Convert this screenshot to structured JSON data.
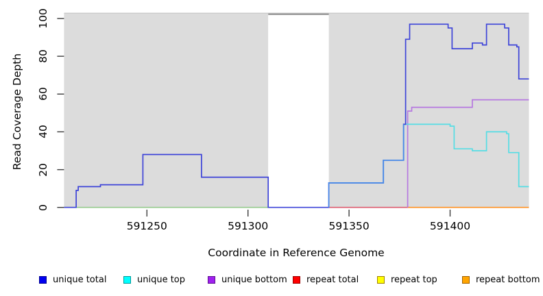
{
  "chart_data": {
    "type": "step-line",
    "title": "",
    "xlabel": "Coordinate in Reference Genome",
    "ylabel": "Read Coverage Depth",
    "xlim": [
      591209,
      591439
    ],
    "ylim": [
      0,
      100
    ],
    "x_ticks": [
      591250,
      591300,
      591350,
      591400
    ],
    "y_ticks": [
      0,
      20,
      40,
      60,
      80,
      100
    ],
    "grid": false,
    "background_color": "#ffffff",
    "shaded_color": "#dcdcdc",
    "shaded_regions": [
      [
        591209,
        591310
      ],
      [
        591340,
        591439
      ]
    ],
    "uncovered_gap": {
      "range": [
        591310,
        591340
      ],
      "border_color": "#8a8a8a"
    },
    "top_edge_line": {
      "color": "#c9c9c9"
    },
    "series": [
      {
        "name": "repeat top",
        "color": "#94ca8c",
        "render_note": "appears yellow-green where overlapping series sit at zero",
        "points": [
          [
            591209,
            0
          ],
          [
            591310,
            0
          ]
        ]
      },
      {
        "name": "repeat total",
        "color": "#dc5a6e",
        "points": [
          [
            591340,
            0
          ],
          [
            591380,
            0
          ]
        ]
      },
      {
        "name": "repeat bottom",
        "color": "#ff9020",
        "points": [
          [
            591379,
            0
          ],
          [
            591439,
            0
          ]
        ]
      },
      {
        "name": "unique bottom",
        "color": "#b678e0",
        "points": [
          [
            591379,
            0
          ],
          [
            591379,
            51
          ],
          [
            591381,
            51
          ],
          [
            591381,
            53
          ],
          [
            591411,
            53
          ],
          [
            591411,
            57
          ],
          [
            591439,
            57
          ]
        ]
      },
      {
        "name": "unique top",
        "color": "#55dde4",
        "points": [
          [
            591340,
            13
          ],
          [
            591367,
            13
          ],
          [
            591367,
            25
          ],
          [
            591377,
            25
          ],
          [
            591377,
            44
          ],
          [
            591400,
            44
          ],
          [
            591400,
            43
          ],
          [
            591402,
            43
          ],
          [
            591402,
            31
          ],
          [
            591411,
            31
          ],
          [
            591411,
            30
          ],
          [
            591418,
            30
          ],
          [
            591418,
            40
          ],
          [
            591428,
            40
          ],
          [
            591428,
            39
          ],
          [
            591429,
            39
          ],
          [
            591429,
            29
          ],
          [
            591434,
            29
          ],
          [
            591434,
            11
          ],
          [
            591439,
            11
          ]
        ]
      },
      {
        "name": "unique total",
        "color": "#3d43d8",
        "points": [
          [
            591209,
            0
          ],
          [
            591215,
            0
          ],
          [
            591215,
            9
          ],
          [
            591216,
            9
          ],
          [
            591216,
            11
          ],
          [
            591227,
            11
          ],
          [
            591227,
            12
          ],
          [
            591248,
            12
          ],
          [
            591248,
            28
          ],
          [
            591277,
            28
          ],
          [
            591277,
            16
          ],
          [
            591310,
            16
          ],
          [
            591310,
            0
          ],
          [
            591340,
            0
          ],
          [
            591340,
            13
          ],
          [
            591367,
            13
          ],
          [
            591367,
            25
          ],
          [
            591377,
            25
          ],
          [
            591377,
            44
          ],
          [
            591378,
            44
          ],
          [
            591378,
            89
          ],
          [
            591380,
            89
          ],
          [
            591380,
            97
          ],
          [
            591399,
            97
          ],
          [
            591399,
            95
          ],
          [
            591401,
            95
          ],
          [
            591401,
            84
          ],
          [
            591411,
            84
          ],
          [
            591411,
            87
          ],
          [
            591416,
            87
          ],
          [
            591416,
            86
          ],
          [
            591418,
            86
          ],
          [
            591418,
            97
          ],
          [
            591427,
            97
          ],
          [
            591427,
            95
          ],
          [
            591429,
            95
          ],
          [
            591429,
            86
          ],
          [
            591433,
            86
          ],
          [
            591433,
            85
          ],
          [
            591434,
            85
          ],
          [
            591434,
            68
          ],
          [
            591439,
            68
          ]
        ]
      }
    ],
    "overlap_highlight": {
      "color": "#4a8ae8",
      "render_note": "unique total and unique top coincide here and blend",
      "points": [
        [
          591340,
          0
        ],
        [
          591340,
          13
        ],
        [
          591367,
          13
        ],
        [
          591367,
          25
        ],
        [
          591377,
          25
        ],
        [
          591377,
          44
        ]
      ]
    },
    "legend": {
      "position": "bottom",
      "items": [
        {
          "label": "unique total",
          "fill": "#0000f0",
          "border": "#000090"
        },
        {
          "label": "unique top",
          "fill": "#00ffff",
          "border": "#009999"
        },
        {
          "label": "unique bottom",
          "fill": "#a020f0",
          "border": "#5c0e8e"
        },
        {
          "label": "repeat total",
          "fill": "#ff0000",
          "border": "#990000"
        },
        {
          "label": "repeat top",
          "fill": "#ffff00",
          "border": "#a08000"
        },
        {
          "label": "repeat bottom",
          "fill": "#ffa500",
          "border": "#a06000"
        }
      ]
    }
  }
}
